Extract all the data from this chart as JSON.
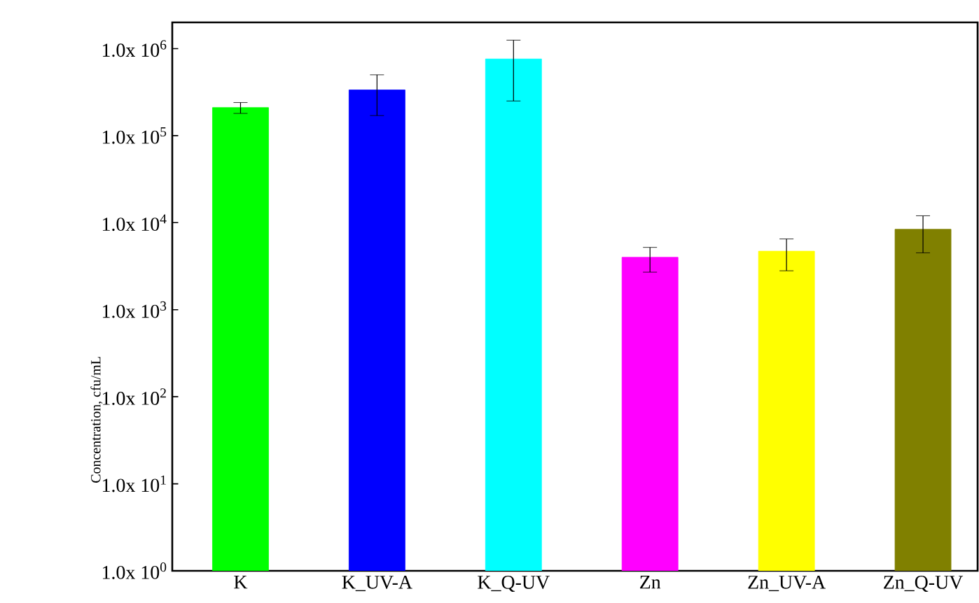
{
  "chart_data": {
    "type": "bar",
    "ylabel": "Concentration, cfu/mL",
    "categories": [
      "K",
      "K_UV-A",
      "K_Q-UV",
      "Zn",
      "Zn_UV-A",
      "Zn_Q-UV"
    ],
    "values": [
      210000,
      335000,
      760000,
      4000,
      4700,
      8400
    ],
    "colors": [
      "#00ff00",
      "#0000ff",
      "#00ffff",
      "#ff00ff",
      "#ffff00",
      "#808000"
    ],
    "errors": [
      [
        180000,
        240000
      ],
      [
        170000,
        500000
      ],
      [
        250000,
        1250000
      ],
      [
        2700,
        5200
      ],
      [
        2800,
        6500
      ],
      [
        4500,
        12000
      ]
    ],
    "log": "y",
    "ylim": [
      1,
      2000000
    ],
    "yticks": [
      {
        "value": 1,
        "label": "1.0x 10$^{0}$"
      },
      {
        "value": 10,
        "label": "1.0x 10$^{1}$"
      },
      {
        "value": 100,
        "label": "1.0x 10$^{2}$"
      },
      {
        "value": 1000,
        "label": "1.0x 10$^{3}$"
      },
      {
        "value": 10000,
        "label": "1.0x 10$^{4}$"
      },
      {
        "value": 100000,
        "label": "1.0x 10$^{5}$"
      },
      {
        "value": 1000000,
        "label": "1.0x 10$^{6}$"
      }
    ],
    "grid": false
  }
}
